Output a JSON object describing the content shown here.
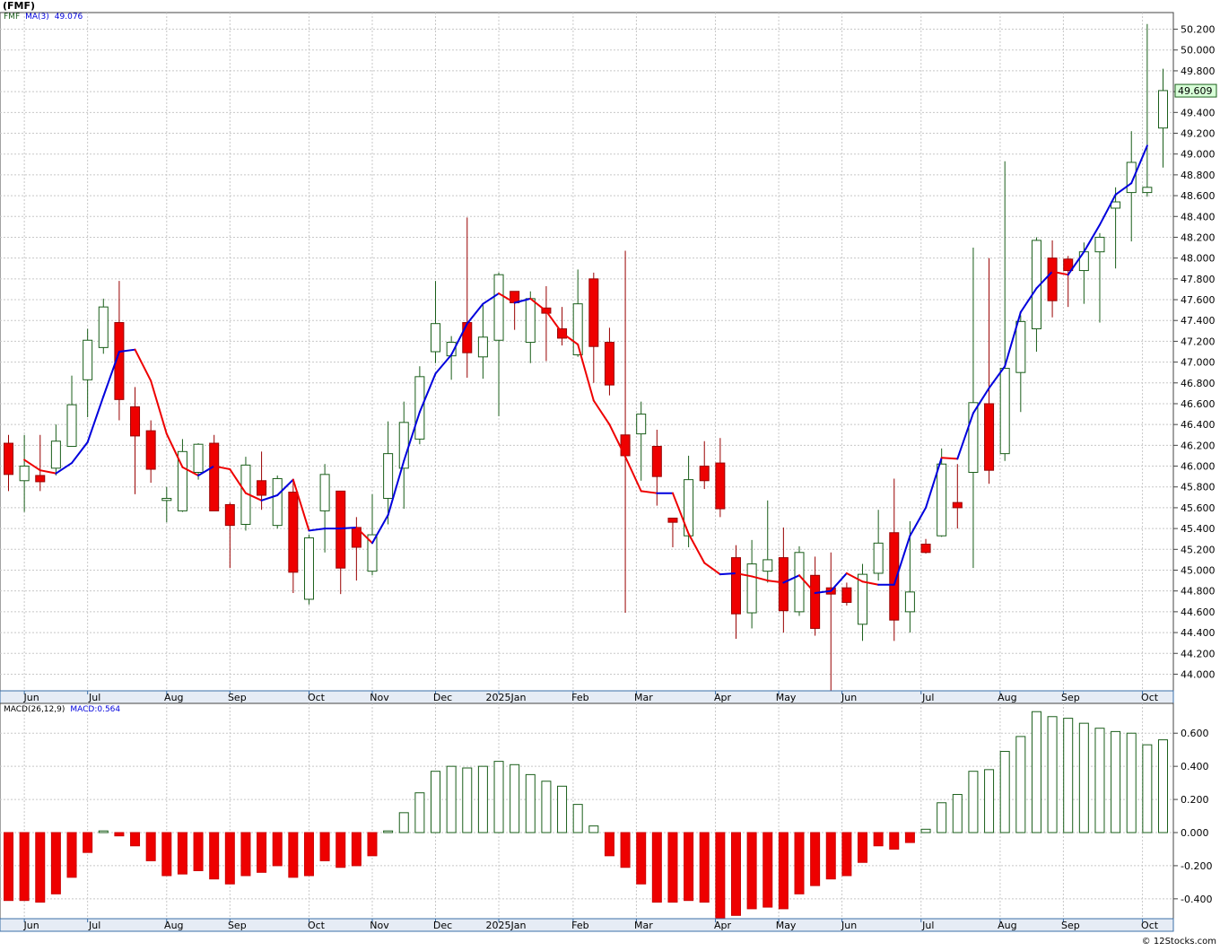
{
  "header": {
    "ticker": "(FMF)",
    "symbol": "FMF",
    "ma_label": "MA(3)",
    "ma_value": "49.076",
    "macd_label": "MACD(26,12,9)",
    "macd_value_label": "MACD:0.564"
  },
  "footer": {
    "watermark": "© 12Stocks.com"
  },
  "colors": {
    "up_candle": "#1a5e1a",
    "down_candle": "#ee0000",
    "ma_rising": "#0000dd",
    "ma_falling": "#ee0000",
    "grid": "#c8c8c8",
    "axis_band": "#e6ecf5",
    "axis_band_border": "#3b6fa8",
    "price_tag_bg": "#d8ffd8"
  },
  "chart_data": [
    {
      "type": "candlestick",
      "title": "(FMF)",
      "ylim": [
        43.84,
        50.36
      ],
      "y_ticks": [
        44.0,
        44.2,
        44.4,
        44.6,
        44.8,
        45.0,
        45.2,
        45.4,
        45.6,
        45.8,
        46.0,
        46.2,
        46.4,
        46.6,
        46.8,
        47.0,
        47.2,
        47.4,
        47.6,
        47.8,
        48.0,
        48.2,
        48.4,
        48.6,
        48.8,
        49.0,
        49.2,
        49.4,
        49.6,
        49.8,
        50.0,
        50.2
      ],
      "y_tick_labels": [
        "44.000",
        "44.200",
        "44.400",
        "44.600",
        "44.800",
        "45.000",
        "45.200",
        "45.400",
        "45.600",
        "45.800",
        "46.000",
        "46.200",
        "46.400",
        "46.600",
        "46.800",
        "47.000",
        "47.200",
        "47.400",
        "47.600",
        "47.800",
        "48.000",
        "48.200",
        "48.400",
        "48.600",
        "48.800",
        "49.000",
        "49.200",
        "49.400",
        "49.600",
        "49.800",
        "50.000",
        "50.200"
      ],
      "last_price": "49.609",
      "grid": true,
      "x_labels": [
        {
          "label": "Jun",
          "week": 1
        },
        {
          "label": "Jul",
          "week": 5
        },
        {
          "label": "Aug",
          "week": 10
        },
        {
          "label": "Sep",
          "week": 14
        },
        {
          "label": "Oct",
          "week": 19
        },
        {
          "label": "Nov",
          "week": 23
        },
        {
          "label": "Dec",
          "week": 27
        },
        {
          "label": "2025Jan",
          "week": 31
        },
        {
          "label": "Feb",
          "week": 35.7
        },
        {
          "label": "Mar",
          "week": 39.7
        },
        {
          "label": "Apr",
          "week": 44.7
        },
        {
          "label": "May",
          "week": 48.7
        },
        {
          "label": "Jun",
          "week": 52.7
        },
        {
          "label": "Jul",
          "week": 57.7
        },
        {
          "label": "Aug",
          "week": 62.7
        },
        {
          "label": "Sep",
          "week": 66.7
        },
        {
          "label": "Oct",
          "week": 71.7
        }
      ],
      "candles": [
        {
          "o": 46.22,
          "h": 46.3,
          "l": 45.76,
          "c": 45.92
        },
        {
          "o": 45.86,
          "h": 46.3,
          "l": 45.56,
          "c": 46.0
        },
        {
          "o": 45.91,
          "h": 46.3,
          "l": 45.76,
          "c": 45.85
        },
        {
          "o": 45.98,
          "h": 46.4,
          "l": 45.91,
          "c": 46.24
        },
        {
          "o": 46.19,
          "h": 46.87,
          "l": 46.19,
          "c": 46.59
        },
        {
          "o": 46.83,
          "h": 47.32,
          "l": 46.47,
          "c": 47.21
        },
        {
          "o": 47.14,
          "h": 47.61,
          "l": 47.08,
          "c": 47.53
        },
        {
          "o": 47.38,
          "h": 47.78,
          "l": 46.44,
          "c": 46.64
        },
        {
          "o": 46.57,
          "h": 46.76,
          "l": 45.73,
          "c": 46.29
        },
        {
          "o": 46.34,
          "h": 46.44,
          "l": 45.84,
          "c": 45.97
        },
        {
          "o": 45.67,
          "h": 45.8,
          "l": 45.46,
          "c": 45.69
        },
        {
          "o": 45.57,
          "h": 46.26,
          "l": 45.56,
          "c": 46.14
        },
        {
          "o": 45.94,
          "h": 46.22,
          "l": 45.87,
          "c": 46.21
        },
        {
          "o": 46.22,
          "h": 46.3,
          "l": 45.58,
          "c": 45.57
        },
        {
          "o": 45.63,
          "h": 45.65,
          "l": 45.02,
          "c": 45.43
        },
        {
          "o": 45.44,
          "h": 46.09,
          "l": 45.38,
          "c": 46.01
        },
        {
          "o": 45.86,
          "h": 46.14,
          "l": 45.58,
          "c": 45.72
        },
        {
          "o": 45.43,
          "h": 45.91,
          "l": 45.4,
          "c": 45.88
        },
        {
          "o": 45.75,
          "h": 45.86,
          "l": 44.78,
          "c": 44.98
        },
        {
          "o": 44.72,
          "h": 45.34,
          "l": 44.67,
          "c": 45.31
        },
        {
          "o": 45.57,
          "h": 46.02,
          "l": 45.17,
          "c": 45.92
        },
        {
          "o": 45.76,
          "h": 45.76,
          "l": 44.77,
          "c": 45.02
        },
        {
          "o": 45.41,
          "h": 45.51,
          "l": 44.9,
          "c": 45.22
        },
        {
          "o": 44.99,
          "h": 45.73,
          "l": 44.95,
          "c": 45.34
        },
        {
          "o": 45.69,
          "h": 46.43,
          "l": 45.44,
          "c": 46.12
        },
        {
          "o": 45.98,
          "h": 46.62,
          "l": 45.59,
          "c": 46.42
        },
        {
          "o": 46.26,
          "h": 46.96,
          "l": 46.21,
          "c": 46.86
        },
        {
          "o": 47.1,
          "h": 47.78,
          "l": 46.99,
          "c": 47.37
        },
        {
          "o": 47.06,
          "h": 47.25,
          "l": 46.83,
          "c": 47.19
        },
        {
          "o": 47.38,
          "h": 48.39,
          "l": 46.85,
          "c": 47.09
        },
        {
          "o": 47.05,
          "h": 47.56,
          "l": 46.84,
          "c": 47.24
        },
        {
          "o": 47.21,
          "h": 47.86,
          "l": 46.48,
          "c": 47.84
        },
        {
          "o": 47.68,
          "h": 47.68,
          "l": 47.31,
          "c": 47.57
        },
        {
          "o": 47.19,
          "h": 47.68,
          "l": 46.99,
          "c": 47.61
        },
        {
          "o": 47.52,
          "h": 47.73,
          "l": 47.01,
          "c": 47.47
        },
        {
          "o": 47.32,
          "h": 47.53,
          "l": 47.16,
          "c": 47.23
        },
        {
          "o": 47.07,
          "h": 47.89,
          "l": 47.05,
          "c": 47.56
        },
        {
          "o": 47.8,
          "h": 47.86,
          "l": 46.8,
          "c": 47.15
        },
        {
          "o": 47.19,
          "h": 47.33,
          "l": 46.68,
          "c": 46.78
        },
        {
          "o": 46.3,
          "h": 48.07,
          "l": 44.59,
          "c": 46.1
        },
        {
          "o": 46.31,
          "h": 46.62,
          "l": 45.86,
          "c": 46.5
        },
        {
          "o": 46.19,
          "h": 46.35,
          "l": 45.62,
          "c": 45.9
        },
        {
          "o": 45.5,
          "h": 45.5,
          "l": 45.22,
          "c": 45.46
        },
        {
          "o": 45.33,
          "h": 46.1,
          "l": 45.22,
          "c": 45.87
        },
        {
          "o": 46.0,
          "h": 46.24,
          "l": 45.78,
          "c": 45.86
        },
        {
          "o": 46.03,
          "h": 46.27,
          "l": 45.51,
          "c": 45.59
        },
        {
          "o": 45.12,
          "h": 45.24,
          "l": 44.34,
          "c": 44.58
        },
        {
          "o": 44.59,
          "h": 45.29,
          "l": 44.44,
          "c": 45.06
        },
        {
          "o": 44.99,
          "h": 45.67,
          "l": 44.88,
          "c": 45.1
        },
        {
          "o": 45.12,
          "h": 45.41,
          "l": 44.4,
          "c": 44.61
        },
        {
          "o": 44.6,
          "h": 45.23,
          "l": 44.56,
          "c": 45.17
        },
        {
          "o": 44.95,
          "h": 45.13,
          "l": 44.37,
          "c": 44.44
        },
        {
          "o": 44.83,
          "h": 45.17,
          "l": 43.84,
          "c": 44.77
        },
        {
          "o": 44.83,
          "h": 44.88,
          "l": 44.66,
          "c": 44.69
        },
        {
          "o": 44.48,
          "h": 45.06,
          "l": 44.32,
          "c": 44.96
        },
        {
          "o": 44.97,
          "h": 45.58,
          "l": 44.9,
          "c": 45.26
        },
        {
          "o": 45.36,
          "h": 45.88,
          "l": 44.32,
          "c": 44.52
        },
        {
          "o": 44.6,
          "h": 45.47,
          "l": 44.4,
          "c": 44.79
        },
        {
          "o": 45.25,
          "h": 45.3,
          "l": 45.16,
          "c": 45.17
        },
        {
          "o": 45.33,
          "h": 46.17,
          "l": 45.32,
          "c": 46.02
        },
        {
          "o": 45.65,
          "h": 46.02,
          "l": 45.4,
          "c": 45.6
        },
        {
          "o": 45.94,
          "h": 48.1,
          "l": 45.02,
          "c": 46.61
        },
        {
          "o": 46.6,
          "h": 48.0,
          "l": 45.83,
          "c": 45.96
        },
        {
          "o": 46.12,
          "h": 48.93,
          "l": 46.05,
          "c": 46.94
        },
        {
          "o": 46.9,
          "h": 47.45,
          "l": 46.52,
          "c": 47.39
        },
        {
          "o": 47.32,
          "h": 48.2,
          "l": 47.1,
          "c": 48.17
        },
        {
          "o": 48.0,
          "h": 48.17,
          "l": 47.43,
          "c": 47.59
        },
        {
          "o": 47.99,
          "h": 48.02,
          "l": 47.53,
          "c": 47.88
        },
        {
          "o": 47.88,
          "h": 48.15,
          "l": 47.56,
          "c": 48.06
        },
        {
          "o": 48.06,
          "h": 48.24,
          "l": 47.38,
          "c": 48.2
        },
        {
          "o": 48.48,
          "h": 48.68,
          "l": 47.9,
          "c": 48.54
        },
        {
          "o": 48.63,
          "h": 49.22,
          "l": 48.16,
          "c": 48.92
        },
        {
          "o": 48.63,
          "h": 50.25,
          "l": 48.59,
          "c": 48.68
        },
        {
          "o": 49.25,
          "h": 49.82,
          "l": 48.87,
          "c": 49.61
        }
      ],
      "ma": [
        46.06,
        45.96,
        45.93,
        46.03,
        46.23,
        46.67,
        47.1,
        47.12,
        46.82,
        46.31,
        45.99,
        45.91,
        46.0,
        45.97,
        45.74,
        45.67,
        45.72,
        45.87,
        45.38,
        45.4,
        45.4,
        45.41,
        45.26,
        45.53,
        46.05,
        46.52,
        46.89,
        47.07,
        47.37,
        47.56,
        47.66,
        47.57,
        47.61,
        47.49,
        47.28,
        47.17,
        46.63,
        46.4,
        46.09,
        45.76,
        45.74,
        45.74,
        45.35,
        45.07,
        44.96,
        44.97,
        44.94,
        44.9,
        44.88,
        44.95,
        44.78,
        44.8,
        44.97,
        44.89,
        44.86,
        44.86,
        45.33,
        45.6,
        46.08,
        46.07,
        46.51,
        46.75,
        46.96,
        47.48,
        47.71,
        47.87,
        47.84,
        48.06,
        48.32,
        48.61,
        48.72,
        49.08
      ],
      "ma_start_index": 1
    },
    {
      "type": "bar",
      "title": "MACD(26,12,9)",
      "ylim": [
        -0.52,
        0.78
      ],
      "y_ticks": [
        -0.4,
        -0.2,
        0.0,
        0.2,
        0.4,
        0.6
      ],
      "y_tick_labels": [
        "-0.400",
        "-0.200",
        "0.000",
        "0.200",
        "0.400",
        "0.600"
      ],
      "values": [
        -0.41,
        -0.41,
        -0.42,
        -0.37,
        -0.27,
        -0.12,
        0.01,
        -0.02,
        -0.08,
        -0.17,
        -0.26,
        -0.25,
        -0.23,
        -0.28,
        -0.31,
        -0.26,
        -0.24,
        -0.2,
        -0.27,
        -0.26,
        -0.17,
        -0.21,
        -0.2,
        -0.14,
        0.01,
        0.12,
        0.24,
        0.37,
        0.4,
        0.39,
        0.4,
        0.43,
        0.41,
        0.35,
        0.31,
        0.28,
        0.17,
        0.04,
        -0.14,
        -0.21,
        -0.31,
        -0.42,
        -0.42,
        -0.41,
        -0.42,
        -0.52,
        -0.5,
        -0.46,
        -0.45,
        -0.46,
        -0.37,
        -0.32,
        -0.28,
        -0.26,
        -0.18,
        -0.08,
        -0.1,
        -0.06,
        0.02,
        0.18,
        0.23,
        0.37,
        0.38,
        0.49,
        0.58,
        0.73,
        0.7,
        0.69,
        0.66,
        0.63,
        0.61,
        0.6,
        0.53,
        0.56
      ]
    }
  ]
}
